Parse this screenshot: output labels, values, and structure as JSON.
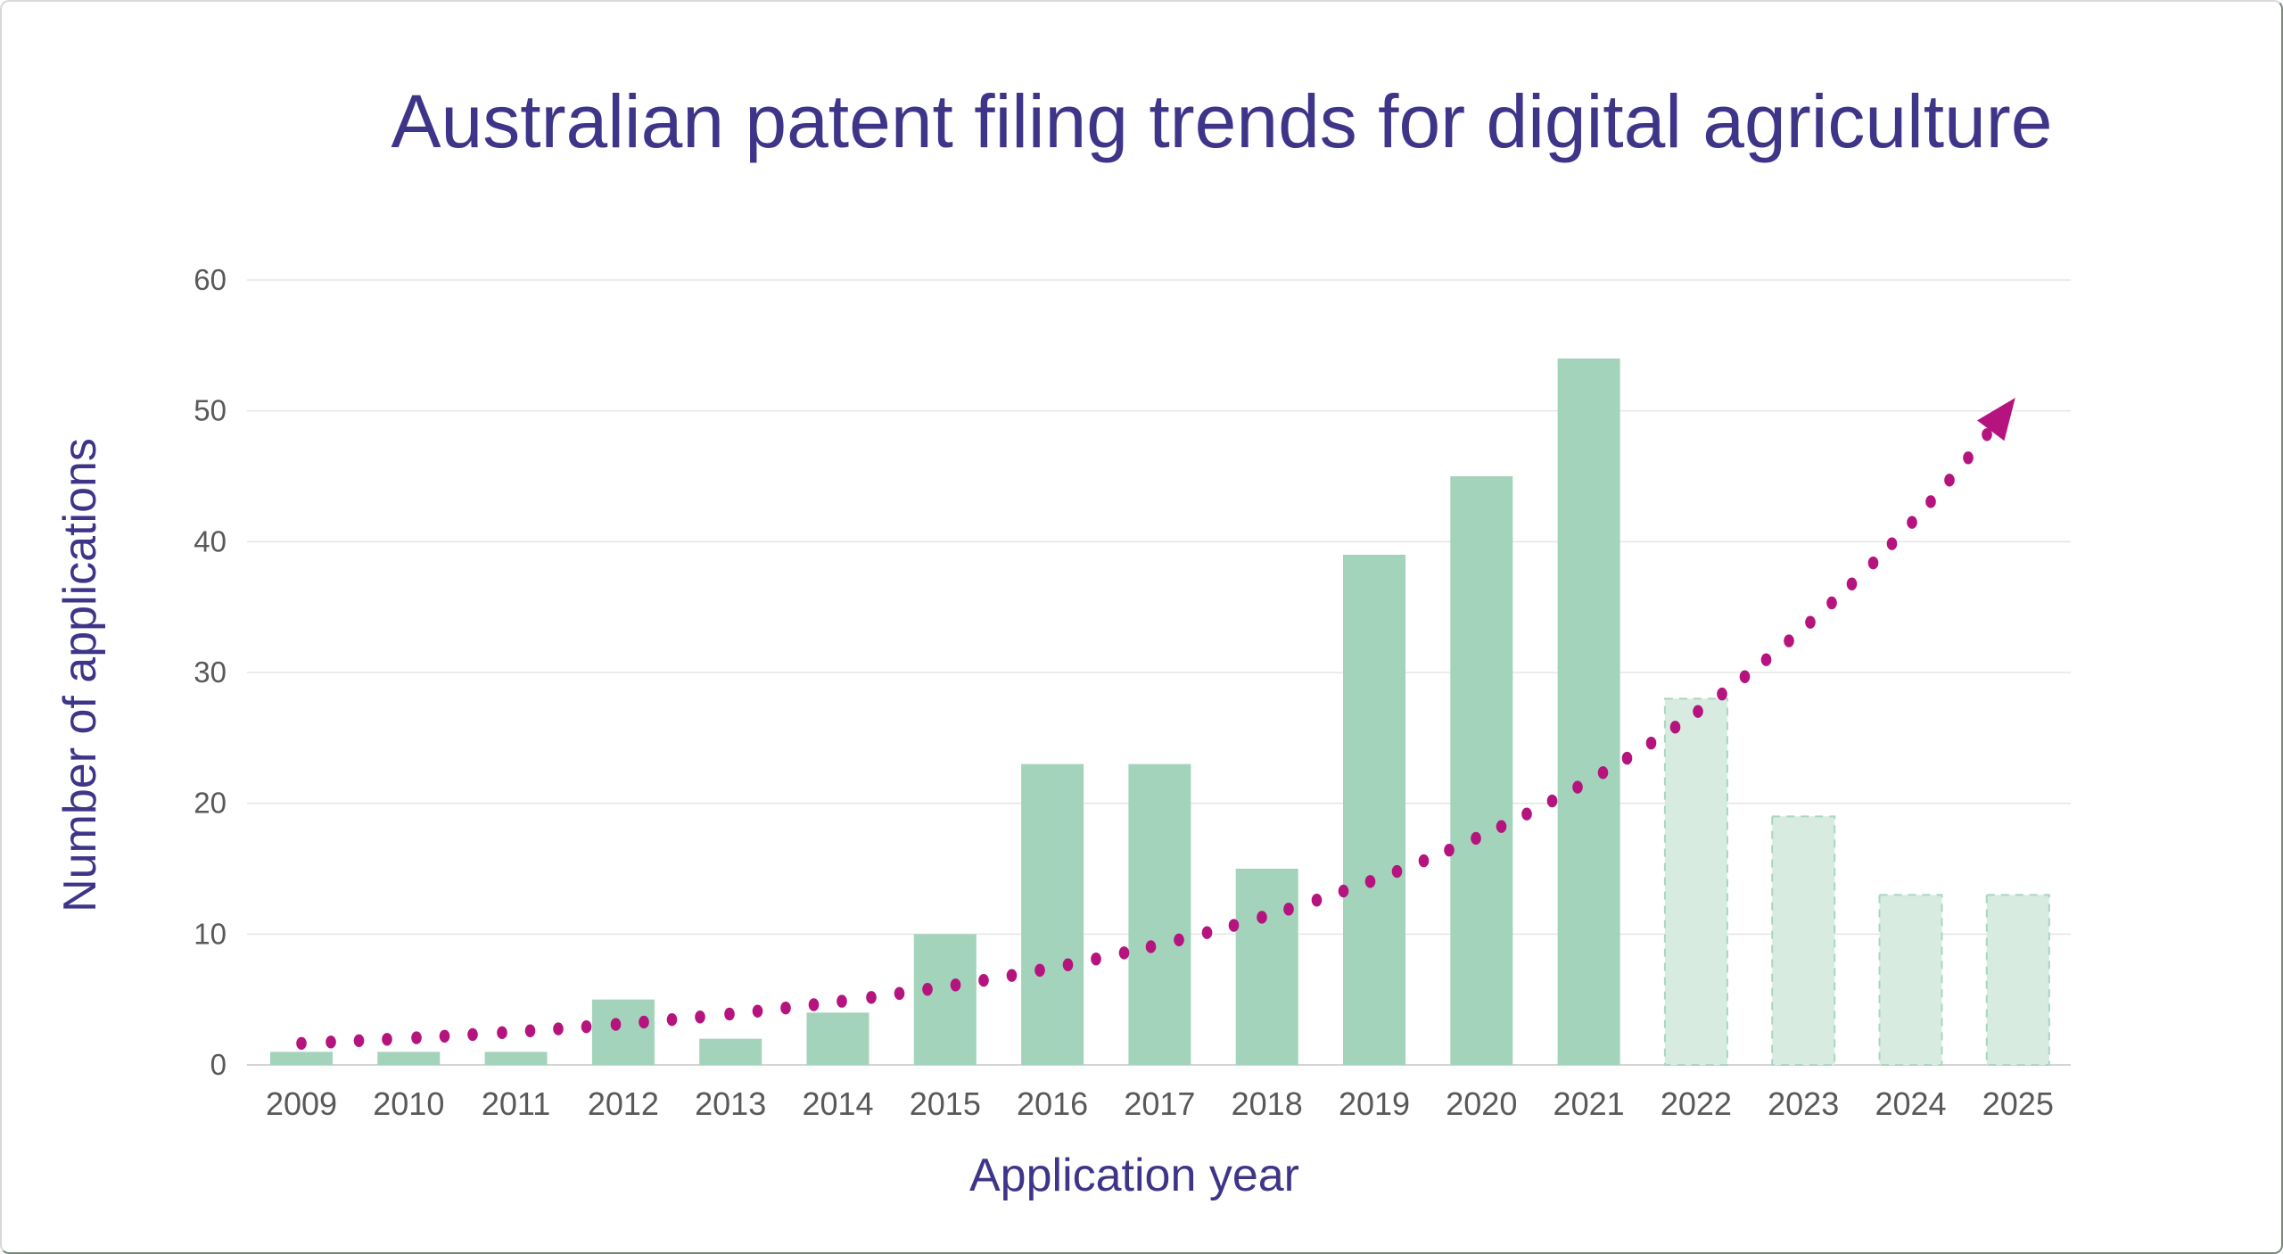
{
  "chart_data": {
    "type": "bar",
    "title": "Australian patent filing trends for digital agriculture",
    "xlabel": "Application year",
    "ylabel": "Number of applications",
    "categories": [
      "2009",
      "2010",
      "2011",
      "2012",
      "2013",
      "2014",
      "2015",
      "2016",
      "2017",
      "2018",
      "2019",
      "2020",
      "2021",
      "2022",
      "2023",
      "2024",
      "2025"
    ],
    "series": [
      {
        "name": "Number of applications",
        "values": [
          1,
          1,
          1,
          5,
          2,
          4,
          10,
          23,
          23,
          15,
          39,
          45,
          54,
          28,
          19,
          13,
          13
        ]
      }
    ],
    "forecast_start_index": 13,
    "forecast_categories": [
      "2022",
      "2023",
      "2024",
      "2025"
    ],
    "yticks": [
      0,
      10,
      20,
      30,
      40,
      50,
      60
    ],
    "ylim": [
      0,
      60
    ],
    "grid": "horizontal",
    "legend": "none",
    "trendline": {
      "type": "exponential",
      "style": "dotted",
      "arrow": true,
      "start_category": "2009",
      "start_value": 1.65,
      "end_category": "2025",
      "end_value": 51
    }
  },
  "colors": {
    "canvas_bg": "#ffffff",
    "title_text": "#3e3589",
    "axis_title_text": "#3e3589",
    "tick_text": "#58595b",
    "bar_fill": "#a4d3bc",
    "forecast_bar_fill": "#d7ebe1",
    "forecast_bar_border": "#a9d6c2",
    "trendline": "#b5137e",
    "gridline": "#e5e5e5",
    "axis_line": "#d4d4d4"
  }
}
